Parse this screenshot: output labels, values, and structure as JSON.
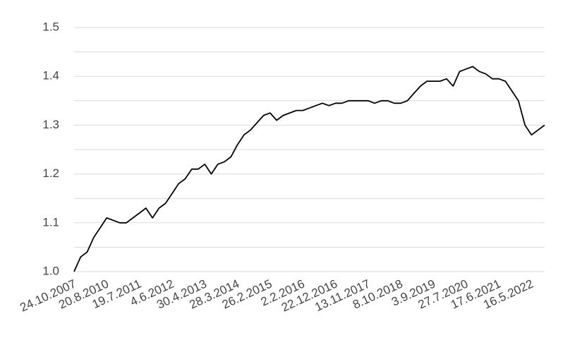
{
  "chart_data": {
    "type": "line",
    "categories": [
      "24.10.2007",
      null,
      null,
      null,
      null,
      "20.8.2010",
      null,
      null,
      null,
      null,
      "19.7.2011",
      null,
      null,
      null,
      null,
      "4.6.2012",
      null,
      null,
      null,
      null,
      "30.4.2013",
      null,
      null,
      null,
      null,
      "28.3.2014",
      null,
      null,
      null,
      null,
      "26.2.2015",
      null,
      null,
      null,
      null,
      "2.2.2016",
      null,
      null,
      null,
      null,
      "22.12.2016",
      null,
      null,
      null,
      null,
      "13.11.2017",
      null,
      null,
      null,
      null,
      "8.10.2018",
      null,
      null,
      null,
      null,
      "3.9.2019",
      null,
      null,
      null,
      null,
      "27.7.2020",
      null,
      null,
      null,
      null,
      "17.6.2021",
      null,
      null,
      null,
      null,
      "16.5.2022",
      null,
      null
    ],
    "values": [
      1.0,
      1.03,
      1.04,
      1.07,
      1.09,
      1.11,
      1.105,
      1.1,
      1.1,
      1.11,
      1.12,
      1.13,
      1.11,
      1.13,
      1.14,
      1.16,
      1.18,
      1.19,
      1.21,
      1.21,
      1.22,
      1.2,
      1.22,
      1.225,
      1.235,
      1.26,
      1.28,
      1.29,
      1.305,
      1.32,
      1.325,
      1.31,
      1.32,
      1.325,
      1.33,
      1.33,
      1.335,
      1.34,
      1.345,
      1.34,
      1.345,
      1.345,
      1.35,
      1.35,
      1.35,
      1.35,
      1.345,
      1.35,
      1.35,
      1.345,
      1.345,
      1.35,
      1.365,
      1.38,
      1.39,
      1.39,
      1.39,
      1.395,
      1.38,
      1.41,
      1.415,
      1.42,
      1.41,
      1.405,
      1.395,
      1.395,
      1.39,
      1.37,
      1.35,
      1.3,
      1.28,
      1.29,
      1.3
    ],
    "color": "#000000",
    "ylim": [
      1.0,
      1.5
    ],
    "yticks": [
      {
        "value": 1,
        "label": "1.0"
      },
      1.1,
      1.2,
      1.3,
      1.4,
      1.5
    ],
    "minor_yticks": [
      1.05,
      1.15,
      1.25,
      1.35,
      1.45
    ],
    "grid": true
  }
}
